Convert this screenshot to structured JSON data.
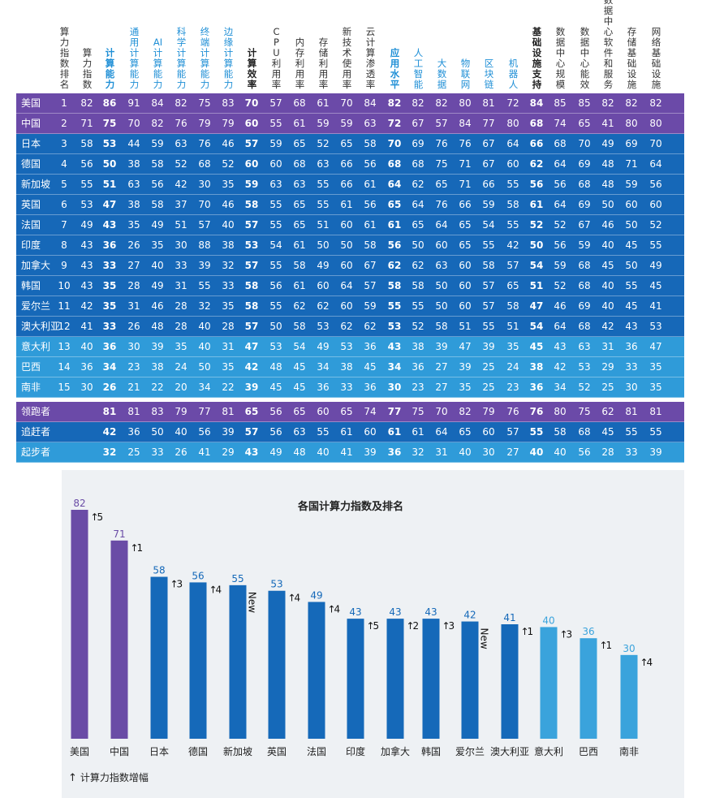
{
  "table": {
    "columns": [
      {
        "label": "算力指数排名",
        "style": "normal"
      },
      {
        "label": "算力指数",
        "style": "normal"
      },
      {
        "label": "计算能力",
        "style": "bluebold"
      },
      {
        "label": "通用计算能力",
        "style": "blue"
      },
      {
        "label": "AI计算能力",
        "style": "blue"
      },
      {
        "label": "科学计算能力",
        "style": "blue"
      },
      {
        "label": "终端计算能力",
        "style": "blue"
      },
      {
        "label": "边缘计算能力",
        "style": "blue"
      },
      {
        "label": "计算效率",
        "style": "bold"
      },
      {
        "label": "CPU利用率",
        "style": "normal"
      },
      {
        "label": "内存利用率",
        "style": "normal"
      },
      {
        "label": "存储利用率",
        "style": "normal"
      },
      {
        "label": "新技术使用率",
        "style": "normal"
      },
      {
        "label": "云计算渗透率",
        "style": "normal"
      },
      {
        "label": "应用水平",
        "style": "bluebold"
      },
      {
        "label": "人工智能",
        "style": "blue"
      },
      {
        "label": "大数据",
        "style": "blue"
      },
      {
        "label": "物联网",
        "style": "blue"
      },
      {
        "label": "区块链",
        "style": "blue"
      },
      {
        "label": "机器人",
        "style": "blue"
      },
      {
        "label": "基础设施支持",
        "style": "bold"
      },
      {
        "label": "数据中心规模",
        "style": "normal"
      },
      {
        "label": "数据中心能效",
        "style": "normal"
      },
      {
        "label": "数据中心软件和服务",
        "style": "normal"
      },
      {
        "label": "存储基础设施",
        "style": "normal"
      },
      {
        "label": "网络基础设施",
        "style": "normal"
      }
    ],
    "bold_columns": [
      2,
      8,
      14,
      20
    ],
    "rows": [
      {
        "name": "美国",
        "color": "#6b4aa8",
        "values": [
          "1",
          "82",
          "86",
          "91",
          "84",
          "82",
          "75",
          "83",
          "70",
          "57",
          "68",
          "61",
          "70",
          "84",
          "82",
          "82",
          "82",
          "80",
          "81",
          "72",
          "84",
          "85",
          "85",
          "82",
          "82",
          "82"
        ]
      },
      {
        "name": "中国",
        "color": "#6b4aa8",
        "values": [
          "2",
          "71",
          "75",
          "70",
          "82",
          "76",
          "79",
          "79",
          "60",
          "55",
          "61",
          "59",
          "59",
          "63",
          "72",
          "67",
          "57",
          "84",
          "77",
          "80",
          "68",
          "74",
          "65",
          "41",
          "80",
          "80"
        ]
      },
      {
        "name": "日本",
        "color": "#1668b8",
        "values": [
          "3",
          "58",
          "53",
          "44",
          "59",
          "63",
          "76",
          "46",
          "57",
          "59",
          "65",
          "52",
          "65",
          "58",
          "70",
          "69",
          "76",
          "76",
          "67",
          "64",
          "66",
          "68",
          "70",
          "49",
          "69",
          "70"
        ]
      },
      {
        "name": "德国",
        "color": "#1668b8",
        "values": [
          "4",
          "56",
          "50",
          "38",
          "58",
          "52",
          "68",
          "52",
          "60",
          "60",
          "68",
          "63",
          "66",
          "56",
          "68",
          "68",
          "75",
          "71",
          "67",
          "60",
          "62",
          "64",
          "69",
          "48",
          "71",
          "64"
        ]
      },
      {
        "name": "新加坡",
        "color": "#1668b8",
        "values": [
          "5",
          "55",
          "51",
          "63",
          "56",
          "42",
          "30",
          "35",
          "59",
          "63",
          "63",
          "55",
          "66",
          "61",
          "64",
          "62",
          "65",
          "71",
          "66",
          "55",
          "56",
          "56",
          "68",
          "48",
          "59",
          "56"
        ]
      },
      {
        "name": "英国",
        "color": "#1668b8",
        "values": [
          "6",
          "53",
          "47",
          "38",
          "58",
          "37",
          "70",
          "46",
          "58",
          "55",
          "65",
          "55",
          "61",
          "56",
          "65",
          "64",
          "76",
          "66",
          "59",
          "58",
          "61",
          "64",
          "69",
          "50",
          "60",
          "60"
        ]
      },
      {
        "name": "法国",
        "color": "#1668b8",
        "values": [
          "7",
          "49",
          "43",
          "35",
          "49",
          "51",
          "57",
          "40",
          "57",
          "55",
          "65",
          "51",
          "60",
          "61",
          "61",
          "65",
          "64",
          "65",
          "54",
          "55",
          "52",
          "52",
          "67",
          "46",
          "50",
          "52"
        ]
      },
      {
        "name": "印度",
        "color": "#1668b8",
        "values": [
          "8",
          "43",
          "36",
          "26",
          "35",
          "30",
          "88",
          "38",
          "53",
          "54",
          "61",
          "50",
          "50",
          "58",
          "56",
          "50",
          "60",
          "65",
          "55",
          "42",
          "50",
          "56",
          "59",
          "40",
          "45",
          "55"
        ]
      },
      {
        "name": "加拿大",
        "color": "#1668b8",
        "values": [
          "9",
          "43",
          "33",
          "27",
          "40",
          "33",
          "39",
          "32",
          "57",
          "55",
          "58",
          "49",
          "60",
          "67",
          "62",
          "62",
          "63",
          "60",
          "58",
          "57",
          "54",
          "59",
          "68",
          "45",
          "50",
          "49"
        ]
      },
      {
        "name": "韩国",
        "color": "#1668b8",
        "values": [
          "10",
          "43",
          "35",
          "28",
          "49",
          "31",
          "55",
          "33",
          "58",
          "56",
          "61",
          "60",
          "64",
          "57",
          "58",
          "58",
          "50",
          "60",
          "57",
          "65",
          "51",
          "52",
          "68",
          "40",
          "55",
          "45"
        ]
      },
      {
        "name": "爱尔兰",
        "color": "#1668b8",
        "values": [
          "11",
          "42",
          "35",
          "31",
          "46",
          "28",
          "32",
          "35",
          "58",
          "55",
          "62",
          "62",
          "60",
          "59",
          "55",
          "55",
          "50",
          "60",
          "57",
          "58",
          "47",
          "46",
          "69",
          "40",
          "45",
          "41"
        ]
      },
      {
        "name": "澳大利亚",
        "color": "#1668b8",
        "values": [
          "12",
          "41",
          "33",
          "26",
          "48",
          "28",
          "40",
          "28",
          "57",
          "50",
          "58",
          "53",
          "62",
          "62",
          "53",
          "52",
          "58",
          "51",
          "55",
          "51",
          "54",
          "64",
          "68",
          "42",
          "43",
          "53"
        ]
      },
      {
        "name": "意大利",
        "color": "#2f9bd9",
        "values": [
          "13",
          "40",
          "36",
          "30",
          "39",
          "35",
          "40",
          "31",
          "47",
          "53",
          "54",
          "49",
          "53",
          "36",
          "43",
          "38",
          "39",
          "47",
          "39",
          "35",
          "45",
          "43",
          "63",
          "31",
          "36",
          "47"
        ]
      },
      {
        "name": "巴西",
        "color": "#2f9bd9",
        "values": [
          "14",
          "36",
          "34",
          "23",
          "38",
          "24",
          "50",
          "35",
          "42",
          "48",
          "45",
          "34",
          "38",
          "45",
          "34",
          "36",
          "27",
          "39",
          "25",
          "24",
          "38",
          "42",
          "53",
          "29",
          "33",
          "35"
        ]
      },
      {
        "name": "南非",
        "color": "#2f9bd9",
        "values": [
          "15",
          "30",
          "26",
          "21",
          "22",
          "20",
          "34",
          "22",
          "39",
          "45",
          "45",
          "36",
          "33",
          "36",
          "30",
          "23",
          "27",
          "35",
          "25",
          "23",
          "36",
          "34",
          "52",
          "25",
          "30",
          "35"
        ]
      }
    ],
    "summary_rows": [
      {
        "name": "领跑者",
        "color": "#6b4aa8",
        "values": [
          "",
          "",
          "81",
          "81",
          "83",
          "79",
          "77",
          "81",
          "65",
          "56",
          "65",
          "60",
          "65",
          "74",
          "77",
          "75",
          "70",
          "82",
          "79",
          "76",
          "76",
          "80",
          "75",
          "62",
          "81",
          "81"
        ]
      },
      {
        "name": "追赶者",
        "color": "#1668b8",
        "values": [
          "",
          "",
          "42",
          "36",
          "50",
          "40",
          "56",
          "39",
          "57",
          "56",
          "63",
          "55",
          "61",
          "60",
          "61",
          "61",
          "64",
          "65",
          "60",
          "57",
          "55",
          "58",
          "68",
          "45",
          "55",
          "55"
        ]
      },
      {
        "name": "起步者",
        "color": "#2f9bd9",
        "values": [
          "",
          "",
          "32",
          "25",
          "33",
          "26",
          "41",
          "29",
          "43",
          "49",
          "48",
          "40",
          "41",
          "39",
          "36",
          "32",
          "31",
          "40",
          "30",
          "27",
          "40",
          "40",
          "56",
          "28",
          "33",
          "39"
        ]
      }
    ]
  },
  "chart_data": {
    "type": "bar",
    "title": "各国计算力指数及排名",
    "categories": [
      "美国",
      "中国",
      "日本",
      "德国",
      "新加坡",
      "英国",
      "法国",
      "印度",
      "加拿大",
      "韩国",
      "爱尔兰",
      "澳大利亚",
      "意大利",
      "巴西",
      "南非"
    ],
    "values": [
      82,
      71,
      58,
      56,
      55,
      53,
      49,
      43,
      43,
      43,
      42,
      41,
      40,
      36,
      30
    ],
    "changes": [
      "5",
      "1",
      "3",
      "4",
      "New",
      "4",
      "4",
      "5",
      "2",
      "3",
      "New",
      "1",
      "3",
      "1",
      "4"
    ],
    "tier_colors": [
      "#6a4ca6",
      "#6a4ca6",
      "#1569b9",
      "#1569b9",
      "#1569b9",
      "#1569b9",
      "#1569b9",
      "#1569b9",
      "#1569b9",
      "#1569b9",
      "#1569b9",
      "#1569b9",
      "#3aa3dc",
      "#3aa3dc",
      "#3aa3dc"
    ],
    "label_colors": [
      "#6a4ca6",
      "#6a4ca6",
      "#1569b9",
      "#1569b9",
      "#1569b9",
      "#1569b9",
      "#1569b9",
      "#1569b9",
      "#1569b9",
      "#1569b9",
      "#1569b9",
      "#1569b9",
      "#3aa3dc",
      "#3aa3dc",
      "#3aa3dc"
    ],
    "ylim": [
      0,
      82
    ]
  },
  "legend": {
    "arrow": "↑",
    "text": "计算力指数增幅"
  }
}
